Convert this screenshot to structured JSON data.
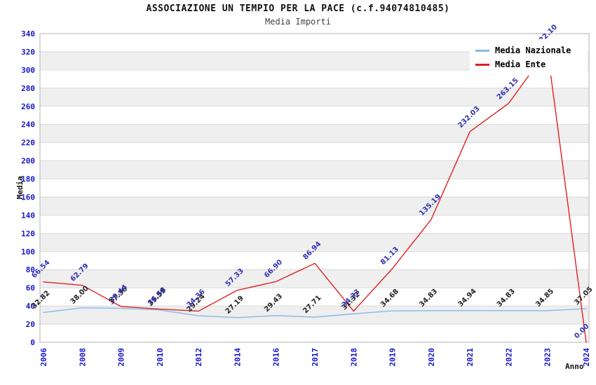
{
  "title": "ASSOCIAZIONE UN TEMPIO PER LA PACE (c.f.94074810485)",
  "subtitle": "Media Importi",
  "legend": {
    "items": [
      {
        "label": "Media Nazionale",
        "color": "#85b9e9"
      },
      {
        "label": "Media Ente",
        "color": "#e02020"
      }
    ]
  },
  "colors": {
    "tick_label": "#1515cf",
    "band_gray": "#efefef",
    "gridline": "#d9d9d9",
    "plot_border": "#b3b3b3",
    "title": "#111111",
    "nazionale_line": "#85b9e9",
    "ente_line": "#e02020",
    "nazionale_point_label": "#222222",
    "ente_point_label": "#3232b4"
  },
  "chart_data": {
    "type": "line",
    "title": "ASSOCIAZIONE UN TEMPIO PER LA PACE (c.f.94074810485)",
    "subtitle": "Media Importi",
    "xlabel": "Anno",
    "ylabel": "Media",
    "x": [
      "2006",
      "2008",
      "2009",
      "2010",
      "2012",
      "2014",
      "2016",
      "2017",
      "2018",
      "2019",
      "2020",
      "2021",
      "2022",
      "2023",
      "2024"
    ],
    "series": [
      {
        "name": "Media Nazionale",
        "color": "#85b9e9",
        "label_color": "#222222",
        "values": [
          32.82,
          38.0,
          37.36,
          35.59,
          29.24,
          27.19,
          29.43,
          27.71,
          31.32,
          34.68,
          34.83,
          34.94,
          34.83,
          34.85,
          37.05
        ]
      },
      {
        "name": "Media Ente",
        "color": "#e02020",
        "label_color": "#3232b4",
        "values": [
          66.54,
          62.79,
          39.44,
          36.58,
          34.36,
          57.33,
          66.9,
          86.94,
          34.33,
          81.13,
          135.19,
          232.03,
          263.15,
          322.1,
          0.0
        ]
      }
    ],
    "ylim": [
      0,
      340
    ],
    "ytick_step": 20,
    "yticks": [
      0,
      20,
      40,
      60,
      80,
      100,
      120,
      140,
      160,
      180,
      200,
      220,
      240,
      260,
      280,
      300,
      320,
      340
    ],
    "grid": true,
    "plot_bands": "alternating-gray-every-20",
    "legend_position": "top-right",
    "label_format": "2-decimals",
    "label_rotation_deg": -45,
    "xtick_rotation_deg": -90
  }
}
